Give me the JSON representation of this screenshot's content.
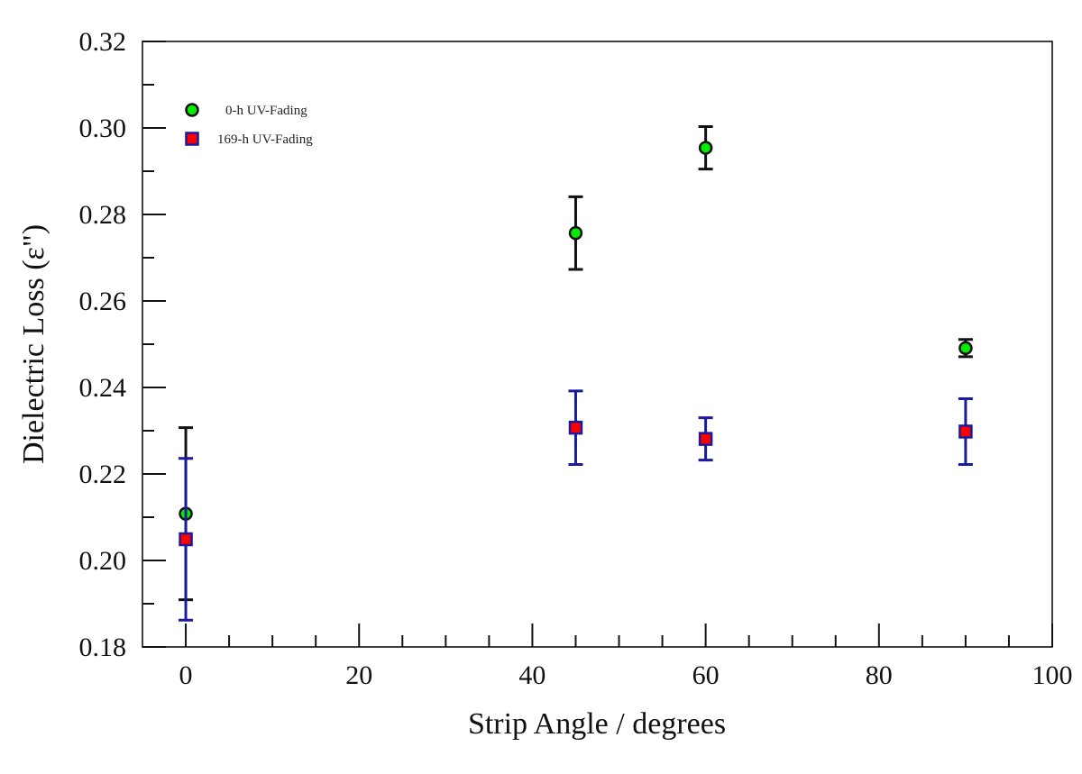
{
  "chart_data": {
    "type": "scatter",
    "title": "",
    "xlabel": "Strip Angle / degrees",
    "ylabel": "Dielectric Loss (ε\")",
    "xlim": [
      -5,
      100
    ],
    "ylim": [
      0.18,
      0.32
    ],
    "x_ticks": [
      0,
      20,
      40,
      60,
      80,
      100
    ],
    "x_tick_labels": [
      "0",
      "20",
      "40",
      "60",
      "80",
      "100"
    ],
    "x_minor_step": 5,
    "y_ticks": [
      0.18,
      0.2,
      0.22,
      0.24,
      0.26,
      0.28,
      0.3,
      0.32
    ],
    "y_tick_labels": [
      "0.18",
      "0.20",
      "0.22",
      "0.24",
      "0.26",
      "0.28",
      "0.30",
      "0.32"
    ],
    "y_minor_step": 0.01,
    "grid": false,
    "legend_position": "top-left",
    "series": [
      {
        "name": "0-h UV-Fading",
        "marker": "circle",
        "fill": "#00ee00",
        "stroke": "#111111",
        "errorbar_color": "#111111",
        "x": [
          0,
          45,
          60,
          90
        ],
        "y": [
          0.2108,
          0.2757,
          0.2954,
          0.2491
        ],
        "err": [
          0.0199,
          0.0084,
          0.0049,
          0.002
        ]
      },
      {
        "name": "169-h UV-Fading",
        "marker": "square",
        "fill": "#ff0000",
        "stroke": "#1a1a9e",
        "errorbar_color": "#1a1a9e",
        "x": [
          0,
          45,
          60,
          90
        ],
        "y": [
          0.2049,
          0.2307,
          0.2281,
          0.2298
        ],
        "err": [
          0.0187,
          0.0085,
          0.0049,
          0.0076
        ]
      }
    ]
  }
}
